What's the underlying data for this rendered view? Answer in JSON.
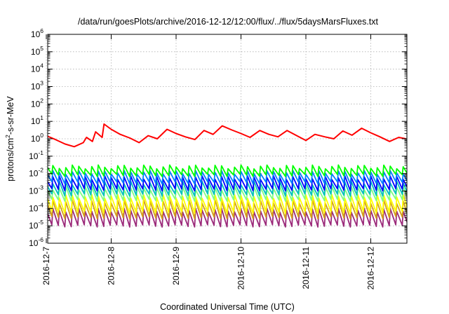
{
  "chart_data": {
    "type": "line",
    "title": "/data/run/goesPlots/archive/2016-12-12/12:00/flux/../flux/5daysMarsFluxes.txt",
    "xlabel": "Coordinated Universal Time (UTC)",
    "ylabel": {
      "base": "protons/cm",
      "sup": "2",
      "rest": "-s-sr-MeV"
    },
    "x_ticks": [
      "2016-12-7",
      "2016-12-8",
      "2016-12-9",
      "2016-12-10",
      "2016-12-11",
      "2016-12-12"
    ],
    "xlim": [
      "2016-12-07",
      "2016-12-12 13:00"
    ],
    "y_scale": "log",
    "ylim": [
      1e-06,
      1000000.0
    ],
    "y_tick_labels": [
      {
        "base": "10",
        "exp": "-6"
      },
      {
        "base": "10",
        "exp": "-5"
      },
      {
        "base": "10",
        "exp": "-4"
      },
      {
        "base": "10",
        "exp": "-3"
      },
      {
        "base": "10",
        "exp": "-2"
      },
      {
        "base": "10",
        "exp": "-1"
      },
      {
        "base": "10",
        "exp": "0"
      },
      {
        "base": "10",
        "exp": "1"
      },
      {
        "base": "10",
        "exp": "2"
      },
      {
        "base": "10",
        "exp": "3"
      },
      {
        "base": "10",
        "exp": "4"
      },
      {
        "base": "10",
        "exp": "5"
      },
      {
        "base": "10",
        "exp": "6"
      }
    ],
    "grid": true,
    "red_series": {
      "color": "#ff0000",
      "x_days": [
        0.0,
        0.14,
        0.29,
        0.43,
        0.57,
        0.62,
        0.71,
        0.76,
        0.86,
        0.89,
        1.0,
        1.14,
        1.29,
        1.43,
        1.57,
        1.71,
        1.86,
        2.0,
        2.14,
        2.29,
        2.43,
        2.57,
        2.71,
        2.86,
        3.0,
        3.14,
        3.29,
        3.43,
        3.57,
        3.71,
        3.86,
        4.0,
        4.14,
        4.29,
        4.43,
        4.57,
        4.71,
        4.86,
        5.0,
        5.14,
        5.29,
        5.43,
        5.54
      ],
      "values": [
        1.5,
        0.9,
        0.5,
        0.35,
        0.6,
        1.2,
        0.7,
        2.5,
        1.2,
        7.0,
        3.5,
        1.8,
        1.1,
        0.6,
        1.5,
        1.0,
        3.5,
        2.0,
        1.3,
        0.9,
        3.0,
        1.8,
        5.5,
        3.2,
        2.0,
        1.2,
        3.0,
        1.8,
        1.3,
        3.0,
        1.5,
        0.8,
        1.8,
        1.3,
        1.0,
        2.8,
        1.6,
        4.0,
        2.2,
        1.3,
        0.7,
        1.2,
        1.0
      ]
    },
    "periodic_series": [
      {
        "color": "#00ff00",
        "low": 0.008,
        "high": 0.025
      },
      {
        "color": "#0080ff",
        "low": 0.003,
        "high": 0.012
      },
      {
        "color": "#0000ff",
        "low": 0.0012,
        "high": 0.006
      },
      {
        "color": "#00c0c0",
        "low": 0.0006,
        "high": 0.003
      },
      {
        "color": "#80ff80",
        "low": 0.0003,
        "high": 0.0015
      },
      {
        "color": "#ffff00",
        "low": 6e-05,
        "high": 0.0005
      },
      {
        "color": "#d4a017",
        "low": 3e-05,
        "high": 0.00025
      },
      {
        "color": "#9b2a7a",
        "low": 1e-05,
        "high": 8e-05
      }
    ],
    "periodic_cycle_days": 0.1
  }
}
